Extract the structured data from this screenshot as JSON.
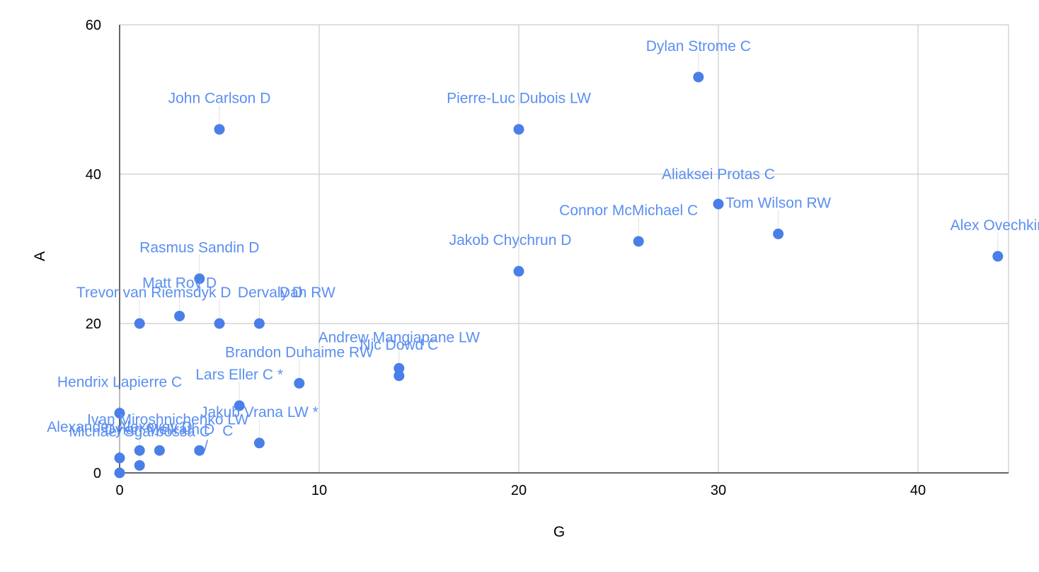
{
  "chart_data": {
    "type": "scatter",
    "title": "",
    "xlabel": "G",
    "ylabel": "A",
    "xlim": [
      0,
      45
    ],
    "ylim": [
      0,
      60
    ],
    "x_ticks": [
      0,
      10,
      20,
      30,
      40
    ],
    "y_ticks": [
      0,
      20,
      40,
      60
    ],
    "grid": true,
    "legend": "none",
    "point_color": "#4a7fe8",
    "label_color": "#5b8ff0",
    "series": [
      {
        "points": [
          {
            "label": "Dylan Strome C",
            "x": 29,
            "y": 53
          },
          {
            "label": "John Carlson D",
            "x": 5,
            "y": 46
          },
          {
            "label": "Pierre-Luc Dubois LW",
            "x": 20,
            "y": 46
          },
          {
            "label": "Aliaksei Protas C",
            "x": 30,
            "y": 36
          },
          {
            "label": "Tom Wilson RW",
            "x": 33,
            "y": 32
          },
          {
            "label": "Connor McMichael C",
            "x": 26,
            "y": 31
          },
          {
            "label": "Alex Ovechkin",
            "x": 44,
            "y": 29
          },
          {
            "label": "Jakob Chychrun D",
            "x": 20,
            "y": 27
          },
          {
            "label": "Rasmus Sandin D",
            "x": 4,
            "y": 26
          },
          {
            "label": "Matt Roy D",
            "x": 3,
            "y": 21
          },
          {
            "label": "Trevor van Riemsdyk D",
            "x": 1,
            "y": 20
          },
          {
            "label": "Dervaly D",
            "x": 5,
            "y": 20
          },
          {
            "label": "Dah RW",
            "x": 7,
            "y": 20
          },
          {
            "label": "Andrew Mangiapane LW",
            "x": 14,
            "y": 14
          },
          {
            "label": "Nic Dowd C",
            "x": 14,
            "y": 13
          },
          {
            "label": "Brandon Duhaime RW",
            "x": 9,
            "y": 12
          },
          {
            "label": "Lars Eller C *",
            "x": 6,
            "y": 9
          },
          {
            "label": "Hendrix Lapierre C",
            "x": 0,
            "y": 8
          },
          {
            "label": "Jakub Vrana LW *",
            "x": 7,
            "y": 4
          },
          {
            "label": "Ivan Miroshnichenko LW",
            "x": 1,
            "y": 3
          },
          {
            "label": "C",
            "x": 4,
            "y": 3
          },
          {
            "label": "Dylan McIlrath D",
            "x": 2,
            "y": 3
          },
          {
            "label": "Michael Sgarbossa C",
            "x": 1,
            "y": 1
          },
          {
            "label": "Alexander Alexeyev D",
            "x": 0,
            "y": 2
          },
          {
            "label": "/",
            "x": 0,
            "y": 0
          }
        ]
      }
    ]
  }
}
